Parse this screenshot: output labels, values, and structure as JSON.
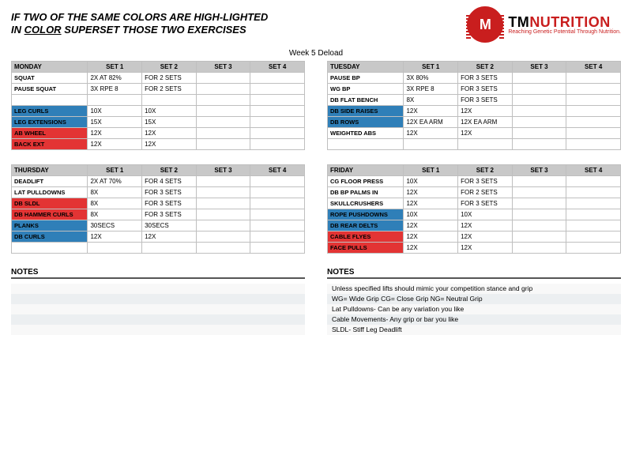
{
  "instruction_line1": "IF TWO OF THE SAME COLORS ARE HIGH-LIGHTED",
  "instruction_line2a": "IN ",
  "instruction_line2b": "COLOR",
  "instruction_line2c": " SUPERSET THOSE TWO EXERCISES",
  "brand_tm": "TM",
  "brand_nutrition": "NUTRITION",
  "brand_tagline": "Reaching Genetic Potential Through Nutrition.",
  "logo_letter": "M",
  "week_title": "Week 5 Deload",
  "set_headers": [
    "SET 1",
    "SET 2",
    "SET 3",
    "SET 4"
  ],
  "notes_label": "NOTES",
  "colors": {
    "header_bg": "#c8c8c8",
    "border": "#bfbfbf",
    "highlight_blue": "#2f7fb8",
    "highlight_red": "#e33434",
    "brand_red": "#c91e1e"
  },
  "tables": [
    {
      "col": "left",
      "day": "MONDAY",
      "rows": [
        {
          "name": "SQUAT",
          "hl": "",
          "s": [
            "2X AT 82%",
            "FOR 2 SETS",
            "",
            ""
          ]
        },
        {
          "name": "PAUSE SQUAT",
          "hl": "",
          "s": [
            "3X RPE 8",
            "FOR 2 SETS",
            "",
            ""
          ]
        },
        {
          "name": "",
          "hl": "",
          "s": [
            "",
            "",
            "",
            ""
          ]
        },
        {
          "name": "LEG CURLS",
          "hl": "blue",
          "s": [
            "10X",
            "10X",
            "",
            ""
          ]
        },
        {
          "name": "LEG EXTENSIONS",
          "hl": "blue",
          "s": [
            "15X",
            "15X",
            "",
            ""
          ]
        },
        {
          "name": "AB WHEEL",
          "hl": "red",
          "s": [
            "12X",
            "12X",
            "",
            ""
          ]
        },
        {
          "name": "BACK EXT",
          "hl": "red",
          "s": [
            "12X",
            "12X",
            "",
            ""
          ]
        }
      ]
    },
    {
      "col": "left",
      "day": "THURSDAY",
      "rows": [
        {
          "name": "DEADLIFT",
          "hl": "",
          "s": [
            "2X AT 70%",
            "FOR 4 SETS",
            "",
            ""
          ]
        },
        {
          "name": "LAT PULLDOWNS",
          "hl": "",
          "s": [
            "8X",
            "FOR 3 SETS",
            "",
            ""
          ]
        },
        {
          "name": "DB SLDL",
          "hl": "red",
          "s": [
            "8X",
            "FOR 3 SETS",
            "",
            ""
          ]
        },
        {
          "name": "DB HAMMER CURLS",
          "hl": "red",
          "s": [
            "8X",
            "FOR 3 SETS",
            "",
            ""
          ]
        },
        {
          "name": "PLANKS",
          "hl": "blue",
          "s": [
            "30SECS",
            "30SECS",
            "",
            ""
          ]
        },
        {
          "name": "DB  CURLS",
          "hl": "blue",
          "s": [
            "12X",
            "12X",
            "",
            ""
          ]
        },
        {
          "name": "",
          "hl": "",
          "s": [
            "",
            "",
            "",
            ""
          ]
        }
      ]
    },
    {
      "col": "right",
      "day": "TUESDAY",
      "rows": [
        {
          "name": "PAUSE BP",
          "hl": "",
          "s": [
            "3X 80%",
            "FOR 3 SETS",
            "",
            ""
          ]
        },
        {
          "name": "WG BP",
          "hl": "",
          "s": [
            "3X RPE 8",
            "FOR 3 SETS",
            "",
            ""
          ]
        },
        {
          "name": "DB FLAT BENCH",
          "hl": "",
          "s": [
            "8X",
            "FOR 3 SETS",
            "",
            ""
          ]
        },
        {
          "name": "DB SIDE RAISES",
          "hl": "blue",
          "s": [
            "12X",
            "12X",
            "",
            ""
          ]
        },
        {
          "name": "DB ROWS",
          "hl": "blue",
          "s": [
            "12X EA ARM",
            "12X EA ARM",
            "",
            ""
          ]
        },
        {
          "name": "WEIGHTED ABS",
          "hl": "",
          "s": [
            "12X",
            "12X",
            "",
            ""
          ]
        },
        {
          "name": "",
          "hl": "",
          "s": [
            "",
            "",
            "",
            ""
          ]
        }
      ]
    },
    {
      "col": "right",
      "day": "FRIDAY",
      "rows": [
        {
          "name": "CG FLOOR PRESS",
          "hl": "",
          "s": [
            "10X",
            "FOR 3 SETS",
            "",
            ""
          ]
        },
        {
          "name": "DB BP PALMS IN",
          "hl": "",
          "s": [
            "12X",
            "FOR 2 SETS",
            "",
            ""
          ]
        },
        {
          "name": "SKULLCRUSHERS",
          "hl": "",
          "s": [
            "12X",
            "FOR 3 SETS",
            "",
            ""
          ]
        },
        {
          "name": "ROPE PUSHDOWNS",
          "hl": "blue",
          "s": [
            "10X",
            "10X",
            "",
            ""
          ]
        },
        {
          "name": "DB REAR DELTS",
          "hl": "blue",
          "s": [
            "12X",
            "12X",
            "",
            ""
          ]
        },
        {
          "name": "CABLE FLYES",
          "hl": "red",
          "s": [
            "12X",
            "12X",
            "",
            ""
          ]
        },
        {
          "name": "FACE PULLS",
          "hl": "red",
          "s": [
            "12X",
            "12X",
            "",
            ""
          ]
        }
      ]
    }
  ],
  "notes_left": [
    "",
    "",
    "",
    "",
    ""
  ],
  "notes_right": [
    "Unless specified lifts should mimic your competition stance and grip",
    "WG= Wide Grip CG= Close Grip NG= Neutral Grip",
    "Lat Pulldowns- Can be any variation you like",
    "Cable Movements- Any grip or bar you like",
    "SLDL- Stiff Leg Deadlift"
  ]
}
